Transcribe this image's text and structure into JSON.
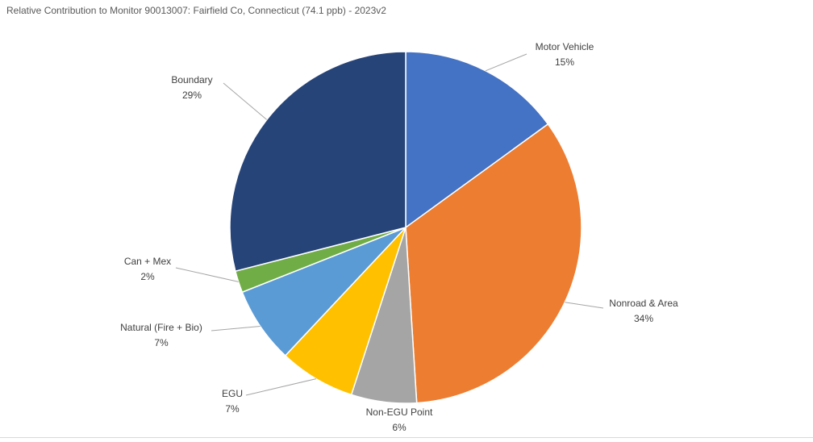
{
  "chart_data": {
    "type": "pie",
    "title": "Relative Contribution to Monitor 90013007: Fairfield Co, Connecticut (74.1 ppb) - 2023v2",
    "slices": [
      {
        "label": "Motor Vehicle",
        "value": 15,
        "value_label": "15%",
        "color": "#4472C4"
      },
      {
        "label": "Nonroad & Area",
        "value": 34,
        "value_label": "34%",
        "color": "#ED7D31"
      },
      {
        "label": "Non-EGU Point",
        "value": 6,
        "value_label": "6%",
        "color": "#A5A5A5"
      },
      {
        "label": "EGU",
        "value": 7,
        "value_label": "7%",
        "color": "#FFC000"
      },
      {
        "label": "Natural (Fire + Bio)",
        "value": 7,
        "value_label": "7%",
        "color": "#5B9BD5"
      },
      {
        "label": "Can + Mex",
        "value": 2,
        "value_label": "2%",
        "color": "#70AD47"
      },
      {
        "label": "Boundary",
        "value": 29,
        "value_label": "29%",
        "color": "#264478"
      }
    ]
  }
}
